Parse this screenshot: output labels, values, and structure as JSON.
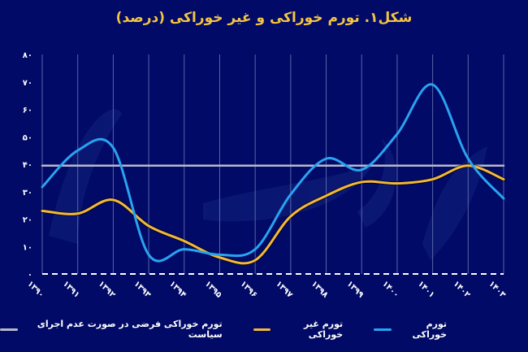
{
  "chart_data": {
    "type": "line",
    "title": "شکل۱. تورم خوراکی و غیر خوراکی (درصد)",
    "xlabel": "",
    "ylabel": "",
    "ylim": [
      0,
      80
    ],
    "yticks": [
      0,
      10,
      20,
      30,
      40,
      50,
      60,
      70,
      80
    ],
    "ytick_labels": [
      "۰",
      "۱۰",
      "۲۰",
      "۳۰",
      "۴۰",
      "۵۰",
      "۶۰",
      "۷۰",
      "۸۰"
    ],
    "categories": [
      "۱۳۹۰",
      "۱۳۹۱",
      "۱۳۹۲",
      "۱۳۹۳",
      "۱۳۹۴",
      "۱۳۹۵",
      "۱۳۹۶",
      "۱۳۹۷",
      "۱۳۹۸",
      "۱۳۹۹",
      "۱۴۰۰",
      "۱۴۰۱",
      "۱۴۰۲",
      "۱۴۰۳"
    ],
    "grid": {
      "vertical": true,
      "horizontal": false
    },
    "legend_position": "bottom",
    "series": [
      {
        "name": "تورم خوراکی",
        "color": "#29a3f0",
        "values": [
          31.7,
          45,
          46,
          7,
          9,
          7,
          9,
          29,
          42,
          38,
          51,
          69,
          42,
          27.5
        ]
      },
      {
        "name": "تورم غیر خوراکی",
        "color": "#f4b83a",
        "values": [
          23,
          22,
          27,
          17.5,
          12,
          6,
          5,
          21,
          28.5,
          33.5,
          33,
          34.5,
          39.5,
          34.5
        ]
      },
      {
        "name": "تورم خوراکی فرضی در صورت عدم اجرای سیاست",
        "color": "#b8b8cc",
        "values": [
          39.5,
          39.5,
          39.5,
          39.5,
          39.5,
          39.5,
          39.5,
          39.5,
          39.5,
          39.5,
          39.5,
          39.5,
          39.5,
          39.5
        ]
      }
    ]
  },
  "legend": {
    "items": [
      {
        "label": "تورم خوراکی",
        "color": "#29a3f0"
      },
      {
        "label": "تورم غیر خوراکی",
        "color": "#f4b83a"
      },
      {
        "label": "تورم خوراکی فرضی در صورت عدم اجرای سیاست",
        "color": "#b8b8cc"
      }
    ]
  },
  "colors": {
    "background": "#010a66",
    "title": "#f4c542",
    "gridline": "#5a64a8",
    "baseline": "#ffffff"
  }
}
